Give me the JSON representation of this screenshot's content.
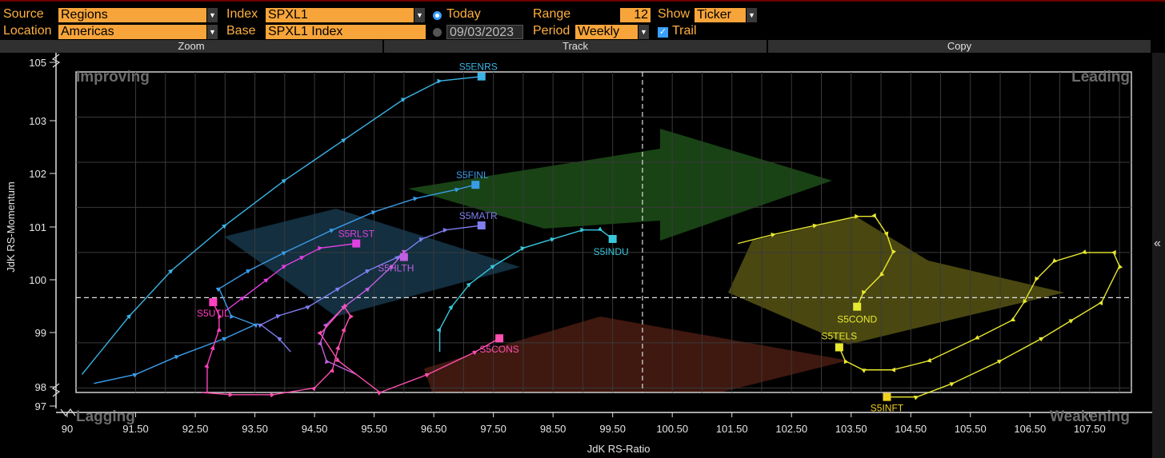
{
  "toolbar": {
    "source_label": "Source",
    "source_value": "Regions",
    "location_label": "Location",
    "location_value": "Americas",
    "index_label": "Index",
    "index_value": "SPXL1",
    "base_label": "Base",
    "base_value": "SPXL1 Index",
    "today_label": "Today",
    "date_value": "09/03/2023",
    "range_label": "Range",
    "range_value": "12",
    "period_label": "Period",
    "period_value": "Weekly",
    "show_label": "Show",
    "show_value": "Ticker",
    "trail_label": "Trail",
    "dropdown_glyph": "▼",
    "check_glyph": "✓"
  },
  "tabs": [
    "Zoom",
    "Track",
    "Copy"
  ],
  "side_button_glyph": "«",
  "colors": {
    "accent": "#f7a53a",
    "S5ENRS": "#3cb4e6",
    "S5FINL": "#3a9ce8",
    "S5MATR": "#7f7ff0",
    "S5INDU": "#38c8dc",
    "S5RLST": "#e040e0",
    "S5HLTH": "#c060e0",
    "S5UTIL": "#ff40c0",
    "S5CONS": "#ff50b0",
    "S5COND": "#e8e830",
    "S5TELS": "#e8e830",
    "S5INFT": "#f0d020"
  },
  "chart_data": {
    "type": "scatter",
    "title": "",
    "xlabel": "JdK RS-Ratio",
    "ylabel": "JdK RS-Momentum",
    "xlim": [
      90,
      108.2
    ],
    "ylim": [
      97,
      105.2
    ],
    "x_ticks": [
      "90",
      "91.50",
      "92.50",
      "93.50",
      "94.50",
      "95.50",
      "96.50",
      "97.50",
      "98.50",
      "99.50",
      "100.50",
      "101.50",
      "102.50",
      "103.50",
      "104.50",
      "105.50",
      "106.50",
      "107.50"
    ],
    "y_ticks": [
      "97",
      "98",
      "99",
      "100",
      "101",
      "102",
      "103",
      "105"
    ],
    "quadrants": {
      "top_left": "Improving",
      "top_right": "Leading",
      "bottom_left": "Lagging",
      "bottom_right": "Weakening"
    },
    "series": [
      {
        "name": "S5ENRS",
        "points": [
          [
            90.6,
            98.3
          ],
          [
            91.4,
            99.6
          ],
          [
            92.1,
            100.6
          ],
          [
            93.0,
            101.6
          ],
          [
            94.0,
            102.6
          ],
          [
            95.0,
            103.5
          ],
          [
            96.0,
            104.4
          ],
          [
            96.6,
            104.8
          ],
          [
            97.3,
            104.9
          ]
        ]
      },
      {
        "name": "S5FINL",
        "points": [
          [
            90.8,
            98.1
          ],
          [
            91.5,
            98.3
          ],
          [
            92.2,
            98.7
          ],
          [
            93.0,
            99.1
          ],
          [
            93.5,
            99.4
          ],
          [
            93.1,
            99.6
          ],
          [
            92.9,
            100.2
          ],
          [
            93.4,
            100.6
          ],
          [
            94.0,
            101.0
          ],
          [
            94.8,
            101.5
          ],
          [
            95.5,
            101.9
          ],
          [
            96.2,
            102.2
          ],
          [
            96.9,
            102.4
          ],
          [
            97.2,
            102.5
          ]
        ]
      },
      {
        "name": "S5MATR",
        "points": [
          [
            94.1,
            98.8
          ],
          [
            93.9,
            99.1
          ],
          [
            93.6,
            99.4
          ],
          [
            93.9,
            99.6
          ],
          [
            94.4,
            99.8
          ],
          [
            94.9,
            100.2
          ],
          [
            95.4,
            100.6
          ],
          [
            95.9,
            100.9
          ],
          [
            96.3,
            101.3
          ],
          [
            96.7,
            101.5
          ],
          [
            97.3,
            101.6
          ]
        ]
      },
      {
        "name": "S5INDU",
        "points": [
          [
            96.6,
            98.8
          ],
          [
            96.6,
            99.3
          ],
          [
            96.8,
            99.8
          ],
          [
            97.1,
            100.3
          ],
          [
            97.5,
            100.7
          ],
          [
            98.0,
            101.1
          ],
          [
            98.5,
            101.3
          ],
          [
            99.0,
            101.5
          ],
          [
            99.3,
            101.5
          ],
          [
            99.5,
            101.3
          ]
        ]
      },
      {
        "name": "S5RLST",
        "points": [
          [
            93.0,
            99.7
          ],
          [
            93.3,
            100.0
          ],
          [
            93.7,
            100.4
          ],
          [
            94.0,
            100.7
          ],
          [
            94.3,
            100.9
          ],
          [
            94.6,
            101.1
          ],
          [
            95.2,
            101.2
          ]
        ]
      },
      {
        "name": "S5HLTH",
        "points": [
          [
            95.2,
            98.3
          ],
          [
            94.7,
            98.6
          ],
          [
            94.6,
            99.0
          ],
          [
            94.7,
            99.4
          ],
          [
            95.0,
            99.8
          ],
          [
            95.4,
            100.2
          ],
          [
            95.8,
            100.7
          ],
          [
            96.0,
            101.0
          ],
          [
            96.0,
            100.9
          ]
        ]
      },
      {
        "name": "S5UTIL",
        "points": [
          [
            92.7,
            97.9
          ],
          [
            92.7,
            98.5
          ],
          [
            92.8,
            98.9
          ],
          [
            92.9,
            99.3
          ],
          [
            92.9,
            99.6
          ],
          [
            92.8,
            99.9
          ]
        ]
      },
      {
        "name": "S5CONS",
        "points": [
          [
            92.6,
            97.9
          ],
          [
            93.1,
            97.85
          ],
          [
            93.8,
            97.85
          ],
          [
            94.5,
            98.0
          ],
          [
            94.8,
            98.4
          ],
          [
            94.9,
            98.9
          ],
          [
            95.0,
            99.3
          ],
          [
            95.1,
            99.6
          ],
          [
            95.0,
            99.8
          ],
          [
            94.6,
            99.2
          ],
          [
            94.9,
            98.6
          ],
          [
            95.6,
            97.9
          ],
          [
            96.4,
            98.3
          ],
          [
            97.2,
            98.8
          ],
          [
            97.6,
            99.1
          ]
        ]
      },
      {
        "name": "S5COND",
        "points": [
          [
            101.6,
            101.2
          ],
          [
            102.2,
            101.4
          ],
          [
            102.9,
            101.6
          ],
          [
            103.6,
            101.8
          ],
          [
            103.9,
            101.8
          ],
          [
            104.1,
            101.4
          ],
          [
            104.2,
            101.0
          ],
          [
            104.0,
            100.5
          ],
          [
            103.7,
            100.1
          ],
          [
            103.6,
            99.8
          ]
        ]
      },
      {
        "name": "S5TELS",
        "points": [
          [
            104.1,
            97.8
          ],
          [
            104.6,
            97.8
          ],
          [
            105.2,
            98.1
          ],
          [
            106.0,
            98.6
          ],
          [
            106.7,
            99.1
          ],
          [
            107.2,
            99.5
          ],
          [
            107.7,
            99.9
          ],
          [
            108.0,
            100.7
          ],
          [
            107.9,
            101.0
          ],
          [
            107.4,
            101.0
          ],
          [
            106.9,
            100.8
          ],
          [
            106.6,
            100.4
          ],
          [
            106.4,
            99.9
          ],
          [
            106.2,
            99.5
          ],
          [
            105.6,
            99.1
          ],
          [
            104.8,
            98.6
          ],
          [
            104.2,
            98.4
          ],
          [
            103.7,
            98.4
          ],
          [
            103.4,
            98.6
          ],
          [
            103.3,
            98.9
          ]
        ]
      },
      {
        "name": "S5INFT",
        "points": [
          [
            104.1,
            97.8
          ]
        ]
      }
    ]
  }
}
